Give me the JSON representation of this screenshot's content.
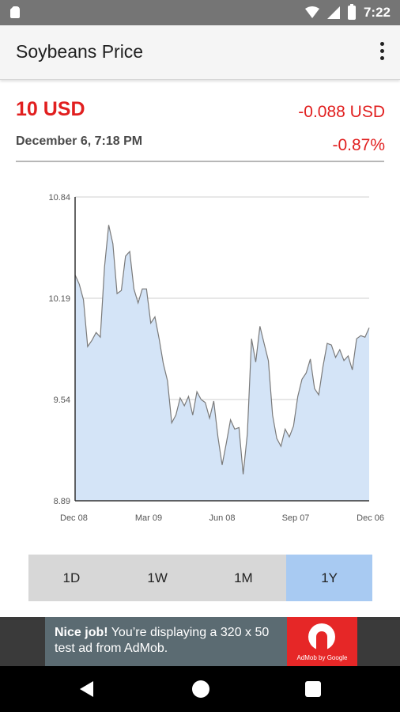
{
  "status_bar": {
    "time": "7:22"
  },
  "app_bar": {
    "title": "Soybeans Price",
    "overflow_icon": "more-vert-icon"
  },
  "quote": {
    "price": "10 USD",
    "change": "-0.088 USD",
    "date": "December 6, 7:18 PM",
    "change_pct": "-0.87%",
    "negative_color": "#e11f1f"
  },
  "chart_data": {
    "type": "area",
    "title": "",
    "xlabel": "",
    "ylabel": "",
    "ylim": [
      8.89,
      10.84
    ],
    "y_ticks": [
      "10.84",
      "10.19",
      "9.54",
      "8.89"
    ],
    "x_ticks": [
      "Dec 08",
      "Mar 09",
      "Jun 08",
      "Sep 07",
      "Dec 06"
    ],
    "grid": true,
    "fill_color": "#d4e4f7",
    "line_color": "#7a7a7a",
    "values": [
      10.34,
      10.28,
      10.18,
      9.88,
      9.92,
      9.97,
      9.94,
      10.39,
      10.66,
      10.54,
      10.22,
      10.24,
      10.46,
      10.49,
      10.25,
      10.16,
      10.25,
      10.25,
      10.03,
      10.07,
      9.93,
      9.77,
      9.66,
      9.39,
      9.44,
      9.55,
      9.5,
      9.56,
      9.44,
      9.59,
      9.54,
      9.52,
      9.42,
      9.53,
      9.3,
      9.12,
      9.26,
      9.41,
      9.35,
      9.36,
      9.06,
      9.32,
      9.93,
      9.78,
      10.01,
      9.9,
      9.79,
      9.44,
      9.29,
      9.24,
      9.35,
      9.3,
      9.37,
      9.56,
      9.67,
      9.71,
      9.8,
      9.61,
      9.57,
      9.75,
      9.9,
      9.89,
      9.81,
      9.86,
      9.79,
      9.82,
      9.73,
      9.93,
      9.95,
      9.94,
      10.0
    ]
  },
  "range_tabs": [
    {
      "label": "1D",
      "active": false
    },
    {
      "label": "1W",
      "active": false
    },
    {
      "label": "1M",
      "active": false
    },
    {
      "label": "1Y",
      "active": true
    }
  ],
  "ad": {
    "headline": "Nice job!",
    "body": " You’re displaying a 320 x 50 test ad from AdMob.",
    "logo_caption": "AdMob by Google"
  }
}
